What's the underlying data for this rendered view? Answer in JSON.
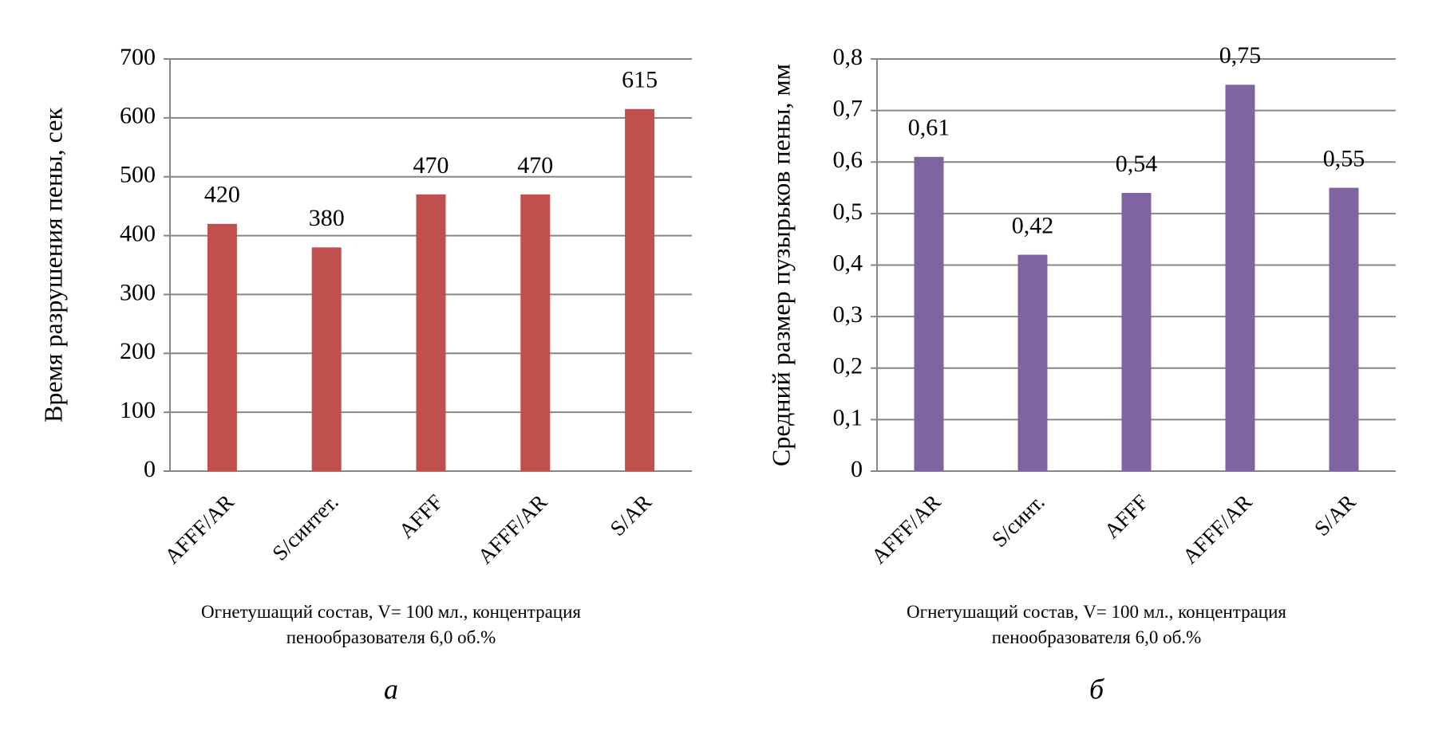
{
  "chart_data": [
    {
      "type": "bar",
      "y_label": "Время разрушения пены, сек",
      "categories": [
        "AFFF/AR",
        "S/синтет.",
        "AFFF",
        "AFFF/AR",
        "S/AR"
      ],
      "values": [
        420,
        380,
        470,
        470,
        615
      ],
      "color": "#c0504d",
      "ylim": [
        0,
        700
      ],
      "yticks": [
        0,
        100,
        200,
        300,
        400,
        500,
        600,
        700
      ],
      "grid": true,
      "x_label": "Огнетушащий состав, V= 100 мл., концентрация пенообразователя 6,0 об.%",
      "caption": "а"
    },
    {
      "type": "bar",
      "y_label": "Средний размер пузырьков пены, мм",
      "categories": [
        "AFFF/AR",
        "S/синт.",
        "AFFF",
        "AFFF/AR",
        "S/AR"
      ],
      "values": [
        0.61,
        0.42,
        0.54,
        0.75,
        0.55
      ],
      "value_labels": [
        "0,61",
        "0,42",
        "0,54",
        "0,75",
        "0,55"
      ],
      "color": "#8064a2",
      "ylim": [
        0,
        0.8
      ],
      "yticks": [
        0,
        {
          "value": 0.1,
          "label": "0,1"
        },
        {
          "value": 0.2,
          "label": "0,2"
        },
        {
          "value": 0.3,
          "label": "0,3"
        },
        {
          "value": 0.4,
          "label": "0,4"
        },
        {
          "value": 0.5,
          "label": "0,5"
        },
        {
          "value": 0.6,
          "label": "0,6"
        },
        {
          "value": 0.7,
          "label": "0,7"
        },
        {
          "value": 0.8,
          "label": "0,8"
        }
      ],
      "grid": true,
      "x_label": "Огнетушащий состав, V= 100 мл., концентрация пенообразователя 6,0 об.%",
      "caption": "б"
    }
  ]
}
